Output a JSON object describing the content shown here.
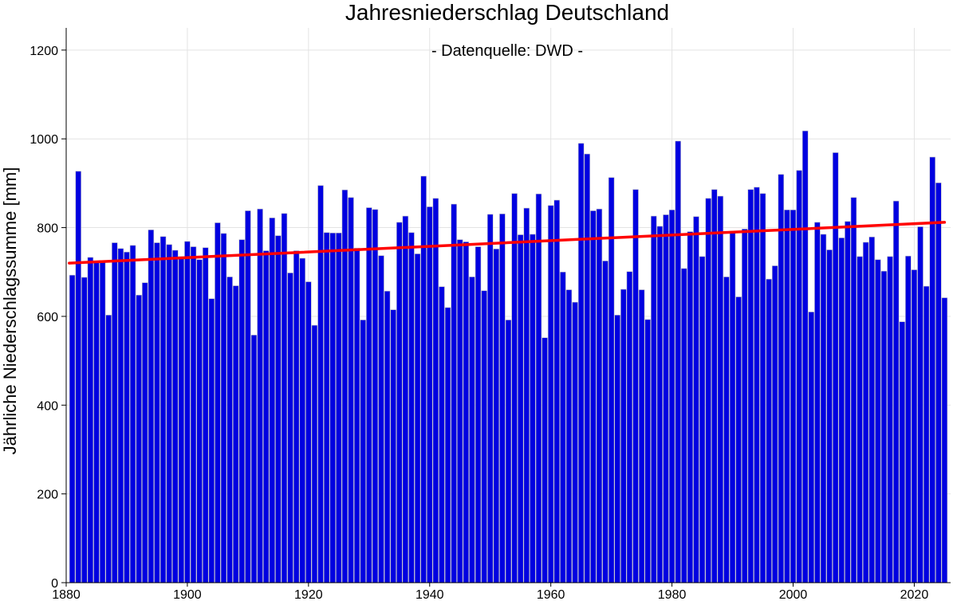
{
  "chart_data": {
    "type": "bar",
    "title": "Jahresniederschlag Deutschland",
    "subtitle": "- Datenquelle: DWD -",
    "xlabel": "",
    "ylabel": "Jährliche Niederschlagssumme [mm]",
    "xlim": [
      1880,
      2026
    ],
    "ylim": [
      0,
      1250
    ],
    "x_ticks": [
      1880,
      1900,
      1920,
      1940,
      1960,
      1980,
      2000,
      2020
    ],
    "y_ticks": [
      0,
      200,
      400,
      600,
      800,
      1000,
      1200
    ],
    "grid": true,
    "bar_color": "#0000e0",
    "bar_edge_color": "#c8c8c8",
    "trend_color": "#ff0000",
    "years_start": 1881,
    "values": [
      693,
      927,
      688,
      733,
      722,
      722,
      603,
      766,
      753,
      745,
      760,
      648,
      676,
      795,
      766,
      780,
      762,
      749,
      735,
      769,
      757,
      728,
      755,
      640,
      811,
      787,
      689,
      669,
      773,
      838,
      558,
      842,
      748,
      822,
      782,
      832,
      698,
      748,
      731,
      678,
      580,
      895,
      789,
      788,
      788,
      885,
      868,
      754,
      592,
      845,
      841,
      737,
      657,
      615,
      812,
      826,
      789,
      741,
      916,
      847,
      866,
      667,
      620,
      853,
      773,
      768,
      689,
      757,
      658,
      830,
      752,
      831,
      592,
      877,
      784,
      844,
      785,
      876,
      552,
      850,
      862,
      700,
      660,
      632,
      990,
      966,
      838,
      842,
      725,
      913,
      603,
      661,
      701,
      886,
      660,
      593,
      826,
      803,
      829,
      840,
      995,
      708,
      791,
      825,
      735,
      866,
      886,
      871,
      689,
      792,
      644,
      797,
      886,
      891,
      877,
      684,
      714,
      920,
      840,
      840,
      929,
      1018,
      610,
      812,
      785,
      750,
      969,
      777,
      814,
      868,
      735,
      767,
      779,
      728,
      702,
      735,
      860,
      588,
      736,
      705,
      802,
      668,
      959,
      901,
      642
    ],
    "trend": {
      "start_value": 720,
      "end_value": 812
    }
  }
}
